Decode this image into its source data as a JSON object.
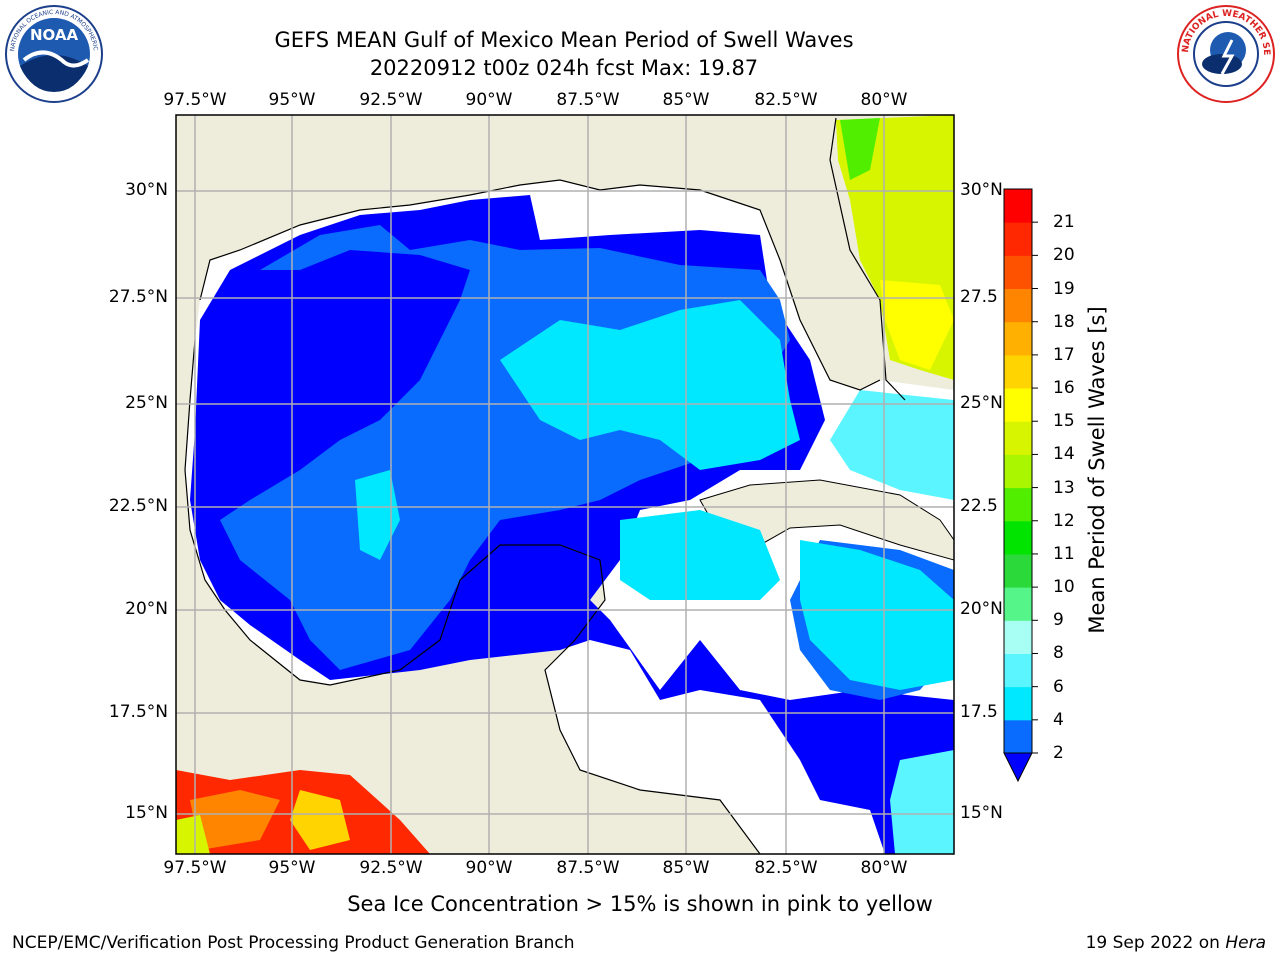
{
  "header": {
    "title_line1": "GEFS MEAN Gulf of Mexico Mean Period of Swell Waves",
    "title_line2": "20220912 t00z 024h fcst   Max: 19.87"
  },
  "logos": {
    "left": "NOAA",
    "left_ring": "NATIONAL OCEANIC AND ATMOSPHERIC ADMINISTRATION · U.S. DEPARTMENT OF COMMERCE",
    "right_ring": "NATIONAL WEATHER SERVICE"
  },
  "map": {
    "lon_labels": [
      "97.5°W",
      "95°W",
      "92.5°W",
      "90°W",
      "87.5°W",
      "85°W",
      "82.5°W",
      "80°W"
    ],
    "lat_labels_left": [
      "30°N",
      "27.5°N",
      "25°N",
      "22.5°N",
      "20°N",
      "17.5°N",
      "15°N"
    ],
    "lat_labels_right": [
      "30°N",
      "27.5",
      "25°N",
      "22.5",
      "20°N",
      "17.5",
      "15°N"
    ],
    "colors": {
      "land": "#eeecdb",
      "grid": "#b0b0b0",
      "missing": "#ffffff"
    }
  },
  "colorbar": {
    "label": "Mean Period of Swell Waves [s]",
    "ticks": [
      "2",
      "4",
      "6",
      "8",
      "9",
      "10",
      "11",
      "12",
      "13",
      "14",
      "15",
      "16",
      "17",
      "18",
      "19",
      "20",
      "21"
    ],
    "colors": [
      "#0a6cff",
      "#00e8ff",
      "#5af5ff",
      "#a8fff4",
      "#55f58a",
      "#2bd93a",
      "#00e400",
      "#51ee00",
      "#aaf500",
      "#d8f500",
      "#ffff00",
      "#ffd400",
      "#ffb000",
      "#ff8500",
      "#ff5200",
      "#ff2800",
      "#ff0000"
    ],
    "under_color": "#0000ff"
  },
  "footer": {
    "note": "Sea Ice Concentration > 15% is shown in pink to yellow",
    "left": "NCEP/EMC/Verification Post Processing Product Generation Branch",
    "right_date": "19 Sep 2022 on ",
    "right_host": "Hera"
  }
}
